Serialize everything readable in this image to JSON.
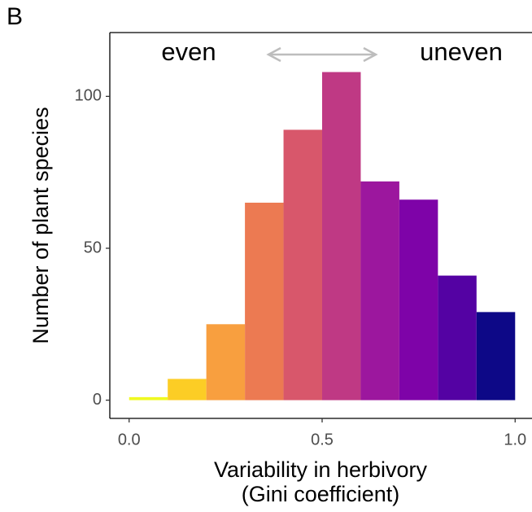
{
  "chart_data": {
    "type": "histogram",
    "panel_label": "B",
    "xlabel": [
      "Variability in herbivory",
      "(Gini coefficient)"
    ],
    "ylabel": "Number of plant species",
    "annotations": [
      "even",
      "uneven"
    ],
    "bins": [
      0.0,
      0.1,
      0.2,
      0.3,
      0.4,
      0.5,
      0.6,
      0.7,
      0.8,
      0.9,
      1.0
    ],
    "values": [
      1,
      7,
      25,
      65,
      89,
      108,
      72,
      66,
      41,
      29
    ],
    "colors": [
      "#f0f921",
      "#fccd25",
      "#f89f3f",
      "#ec7a52",
      "#d8576b",
      "#bf3984",
      "#9c179e",
      "#7e03a8",
      "#5402a3",
      "#0d0887"
    ],
    "xlim": [
      -0.05,
      1.05
    ],
    "ylim": [
      -6,
      121
    ],
    "xticks": [
      {
        "value": 0,
        "label": "0.0"
      },
      0.5,
      {
        "value": 1,
        "label": "1.0"
      }
    ],
    "yticks": [
      0,
      50,
      100
    ],
    "grid": false
  }
}
